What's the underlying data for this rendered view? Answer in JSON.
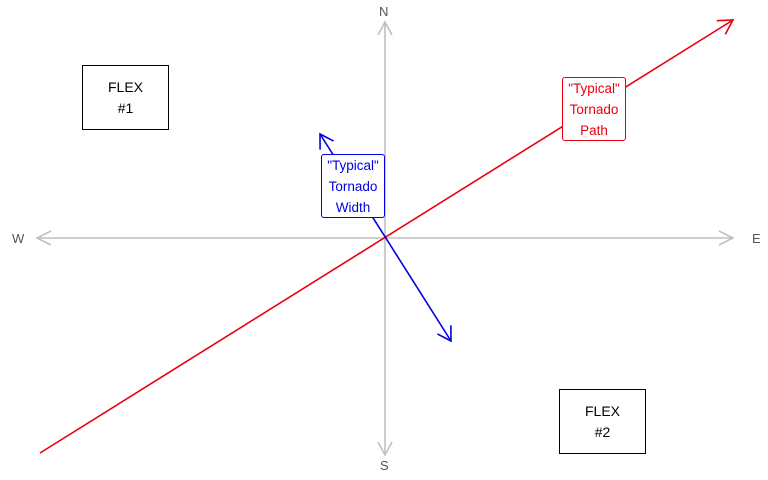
{
  "compass": {
    "north": "N",
    "south": "S",
    "west": "W",
    "east": "E"
  },
  "flex_boxes": [
    {
      "line1": "FLEX",
      "line2": "#1"
    },
    {
      "line1": "FLEX",
      "line2": "#2"
    }
  ],
  "callouts": {
    "path": {
      "lines": [
        "\"Typical\"",
        "Tornado",
        "Path"
      ],
      "color": "#e8000b"
    },
    "width": {
      "lines": [
        "\"Typical\"",
        "Tornado",
        "Width"
      ],
      "color": "#0000e0"
    }
  },
  "colors": {
    "axis": "#c0c0c0",
    "path_arrow": "#e8000b",
    "width_arrow": "#0000e0"
  }
}
